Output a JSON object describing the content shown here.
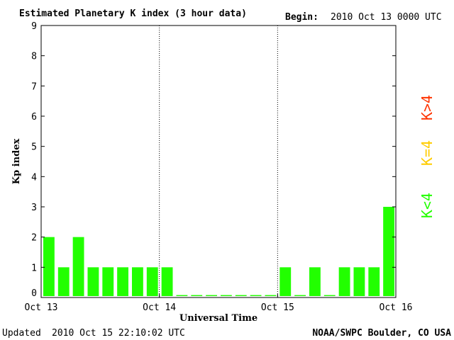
{
  "chart_data": {
    "type": "bar",
    "title": "Estimated Planetary K index (3 hour data)",
    "begin_label": "Begin:",
    "begin_value": "2010 Oct 13 0000 UTC",
    "ylabel": "Kp index",
    "xlabel": "Universal Time",
    "ylim": [
      0,
      9
    ],
    "yticks": [
      "0",
      "1",
      "2",
      "3",
      "4",
      "5",
      "6",
      "7",
      "8",
      "9"
    ],
    "xlim_hours": [
      0,
      72
    ],
    "xticks": [
      {
        "label": "Oct 13",
        "hour": 0
      },
      {
        "label": "Oct 14",
        "hour": 24
      },
      {
        "label": "Oct 15",
        "hour": 48
      },
      {
        "label": "Oct 16",
        "hour": 72
      }
    ],
    "day_separators_hours": [
      24,
      48
    ],
    "bar_interval_hours": 3,
    "values": [
      2,
      1,
      2,
      1,
      1,
      1,
      1,
      1,
      1,
      0,
      0,
      0,
      0,
      0,
      0,
      0,
      1,
      0,
      1,
      0,
      1,
      1,
      1,
      3
    ],
    "colors": {
      "below_4": "#22ff00",
      "equal_4": "#ffcc00",
      "above_4": "#ff3300",
      "frame": "#000000"
    },
    "legend": [
      {
        "label": "K>4",
        "color": "#ff3300"
      },
      {
        "label": "K=4",
        "color": "#ffcc00"
      },
      {
        "label": "K<4",
        "color": "#22ff00"
      }
    ]
  },
  "footer": {
    "updated_label": "Updated",
    "updated_value": "2010 Oct 15 22:10:02 UTC",
    "source": "NOAA/SWPC Boulder, CO USA"
  }
}
